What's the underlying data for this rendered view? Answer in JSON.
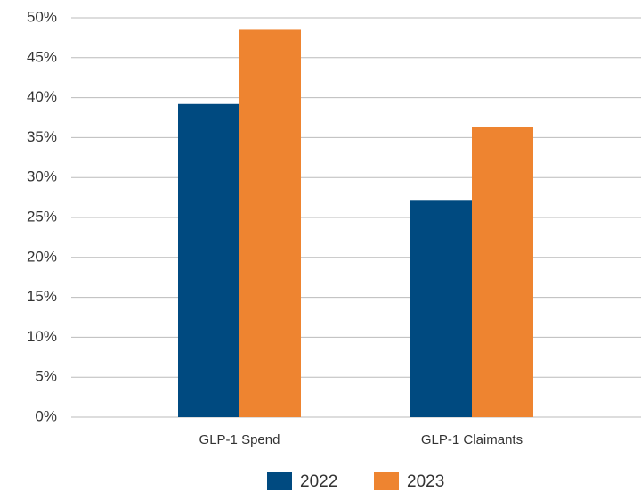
{
  "chart_data": {
    "type": "bar",
    "categories": [
      "GLP-1 Spend",
      "GLP-1 Claimants"
    ],
    "series": [
      {
        "name": "2022",
        "color": "#004a80",
        "values": [
          39.2,
          27.2
        ]
      },
      {
        "name": "2023",
        "color": "#ee8430",
        "values": [
          48.5,
          36.3
        ]
      }
    ],
    "ylim": [
      0,
      50
    ],
    "yticks": [
      {
        "value": 0,
        "label": "0%"
      },
      {
        "value": 5,
        "label": "5%"
      },
      {
        "value": 10,
        "label": "10%"
      },
      {
        "value": 15,
        "label": "15%"
      },
      {
        "value": 20,
        "label": "20%"
      },
      {
        "value": 25,
        "label": "25%"
      },
      {
        "value": 30,
        "label": "30%"
      },
      {
        "value": 35,
        "label": "35%"
      },
      {
        "value": 40,
        "label": "40%"
      },
      {
        "value": 45,
        "label": "45%"
      },
      {
        "value": 50,
        "label": "50%"
      }
    ],
    "grid": true,
    "legend": "bottom"
  }
}
